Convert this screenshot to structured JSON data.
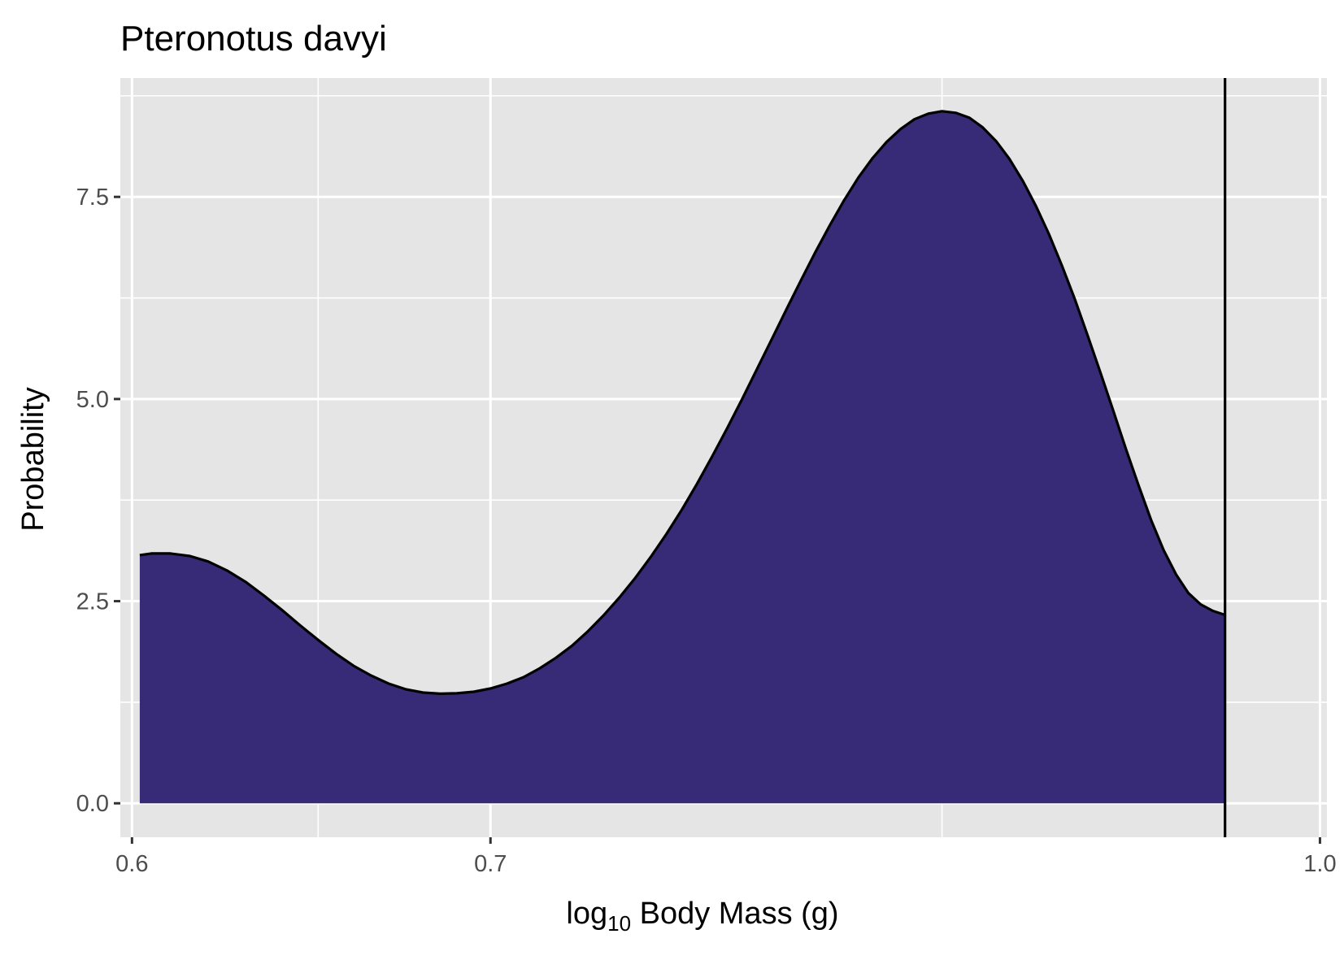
{
  "chart_data": {
    "type": "area",
    "title": "Pteronotus davyi",
    "xlabel_prefix": "log",
    "xlabel_subscript": "10",
    "xlabel_rest": " Body Mass (g)",
    "ylabel": "Probability",
    "x_scale": "log10",
    "xlim": [
      0.597,
      1.003
    ],
    "ylim": [
      -0.42,
      8.97
    ],
    "x_ticks": [
      {
        "value": 0.6,
        "label": "0.6"
      },
      {
        "value": 0.7,
        "label": "0.7"
      },
      {
        "value": 1.0,
        "label": "1.0"
      }
    ],
    "x_minor_ticks": [
      0.65,
      0.85
    ],
    "y_ticks": [
      {
        "value": 0.0,
        "label": "0.0"
      },
      {
        "value": 2.5,
        "label": "2.5"
      },
      {
        "value": 5.0,
        "label": "5.0"
      },
      {
        "value": 7.5,
        "label": "7.5"
      }
    ],
    "y_minor_ticks": [
      1.25,
      3.75,
      6.25,
      8.75
    ],
    "grid": true,
    "fill_color": "#372b77",
    "line_color": "#000000",
    "panel_color": "#e5e5e5",
    "grid_color": "#ffffff",
    "vline_x": 0.96,
    "density": {
      "x": [
        0.602,
        0.605,
        0.61,
        0.615,
        0.62,
        0.625,
        0.63,
        0.635,
        0.64,
        0.645,
        0.65,
        0.655,
        0.66,
        0.665,
        0.67,
        0.675,
        0.68,
        0.685,
        0.69,
        0.695,
        0.7,
        0.705,
        0.71,
        0.715,
        0.72,
        0.725,
        0.73,
        0.735,
        0.74,
        0.745,
        0.75,
        0.755,
        0.76,
        0.765,
        0.77,
        0.775,
        0.78,
        0.785,
        0.79,
        0.795,
        0.8,
        0.805,
        0.81,
        0.815,
        0.82,
        0.825,
        0.83,
        0.835,
        0.84,
        0.845,
        0.85,
        0.855,
        0.86,
        0.865,
        0.87,
        0.875,
        0.88,
        0.885,
        0.89,
        0.895,
        0.9,
        0.905,
        0.91,
        0.915,
        0.92,
        0.925,
        0.93,
        0.935,
        0.94,
        0.945,
        0.95,
        0.955,
        0.96
      ],
      "y": [
        3.07,
        3.09,
        3.09,
        3.06,
        2.99,
        2.88,
        2.74,
        2.57,
        2.39,
        2.2,
        2.02,
        1.85,
        1.7,
        1.58,
        1.48,
        1.41,
        1.37,
        1.355,
        1.36,
        1.38,
        1.42,
        1.48,
        1.56,
        1.67,
        1.8,
        1.95,
        2.13,
        2.33,
        2.55,
        2.79,
        3.05,
        3.33,
        3.63,
        3.95,
        4.29,
        4.64,
        5.0,
        5.37,
        5.74,
        6.11,
        6.47,
        6.82,
        7.15,
        7.46,
        7.74,
        7.98,
        8.18,
        8.34,
        8.46,
        8.53,
        8.56,
        8.54,
        8.48,
        8.36,
        8.19,
        7.97,
        7.7,
        7.39,
        7.04,
        6.65,
        6.23,
        5.78,
        5.32,
        4.85,
        4.38,
        3.93,
        3.5,
        3.13,
        2.83,
        2.6,
        2.46,
        2.38,
        2.33
      ]
    }
  }
}
